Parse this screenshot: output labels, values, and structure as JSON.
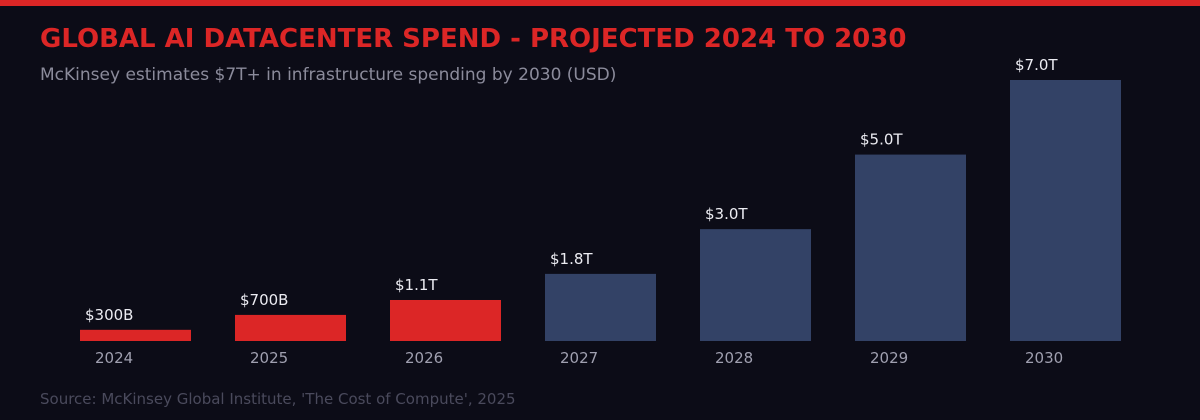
{
  "chart_data": {
    "type": "bar",
    "title": "GLOBAL AI DATACENTER SPEND - PROJECTED 2024 TO 2030",
    "subtitle": "McKinsey estimates $7T+ in infrastructure spending by 2030 (USD)",
    "source": "Source: McKinsey Global Institute, 'The Cost of Compute', 2025",
    "categories": [
      "2024",
      "2025",
      "2026",
      "2027",
      "2028",
      "2029",
      "2030"
    ],
    "values": [
      0.3,
      0.7,
      1.1,
      1.8,
      3.0,
      5.0,
      7.0
    ],
    "value_labels": [
      "$300B",
      "$700B",
      "$1.1T",
      "$1.8T",
      "$3.0T",
      "$5.0T",
      "$7.0T"
    ],
    "unit": "trillion USD",
    "ylim": [
      0,
      7
    ],
    "grid": false,
    "colors": [
      "#dc2626",
      "#dc2626",
      "#dc2626",
      "#334266",
      "#334266",
      "#334266",
      "#334266"
    ],
    "accent": "#dc2626",
    "background": "#0c0c17"
  }
}
